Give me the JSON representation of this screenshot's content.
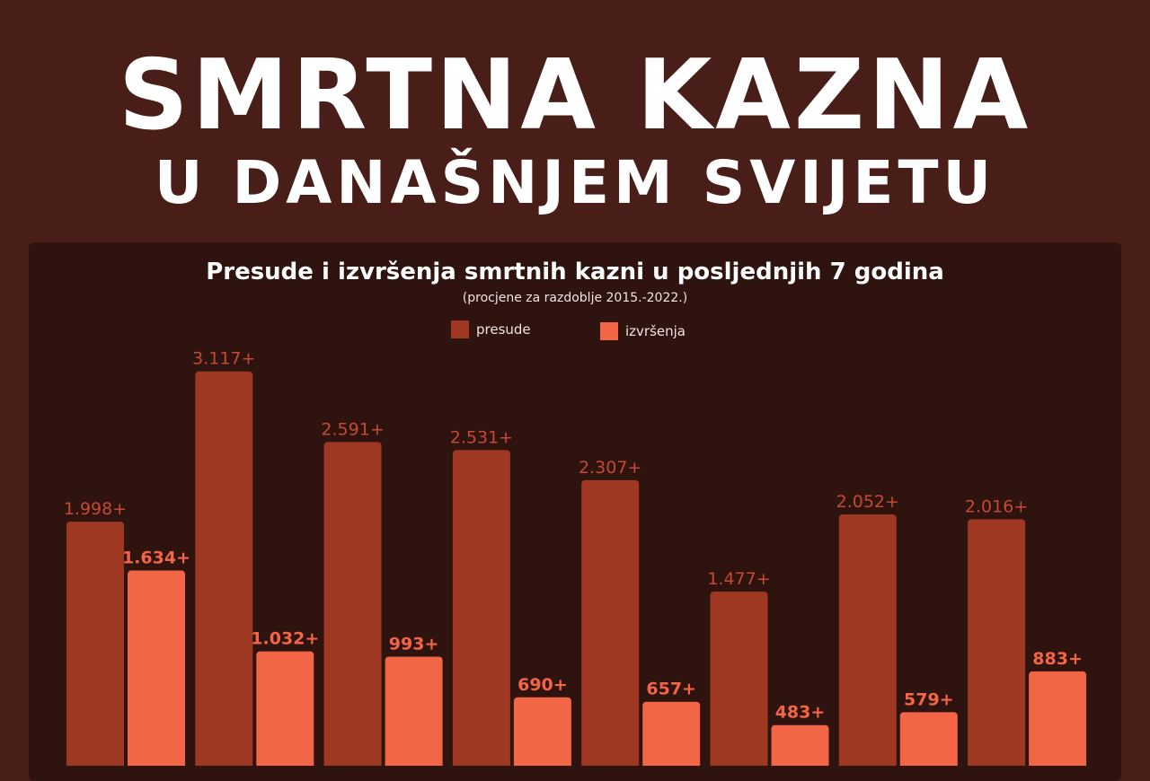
{
  "header": {
    "title": "SMRTNA KAZNA",
    "subtitle": "U DANAŠNJEM SVIJETU"
  },
  "colors": {
    "background": "#4a1e18",
    "panel": "#2e130f",
    "presude": "#9e3823",
    "izvrsenja": "#f26545",
    "presude_label": "#c44a33",
    "izvrsenja_label": "#f26545"
  },
  "chart_data": {
    "type": "bar",
    "title": "Presude i izvršenja smrtnih kazni u posljednjih 7 godina",
    "subtitle": "(procjene za razdoblje 2015.-2022.)",
    "legend": [
      "presude",
      "izvršenja"
    ],
    "legend_position": "top-center",
    "categories": [
      "",
      "",
      "",
      "",
      "",
      "",
      "",
      ""
    ],
    "series": [
      {
        "name": "presude",
        "values": [
          1998,
          3117,
          2591,
          2531,
          2307,
          1477,
          2052,
          2016
        ],
        "labels": [
          "1.998+",
          "3.117+",
          "2.591+",
          "2.531+",
          "2.307+",
          "1.477+",
          "2.052+",
          "2.016+"
        ]
      },
      {
        "name": "izvršenja",
        "values": [
          1634,
          1032,
          993,
          690,
          657,
          483,
          579,
          883
        ],
        "labels": [
          "1.634+",
          "1.032+",
          "993+",
          "690+",
          "657+",
          "483+",
          "579+",
          "883+"
        ]
      }
    ],
    "grid": false
  }
}
